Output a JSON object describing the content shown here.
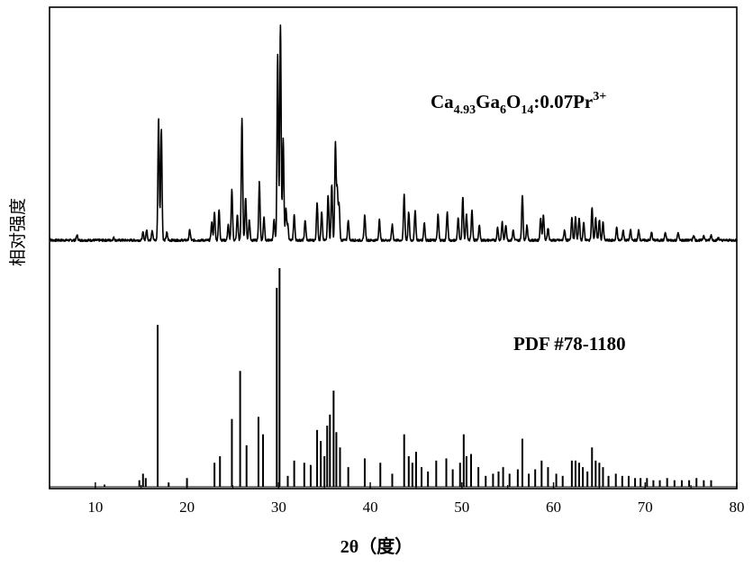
{
  "chart_data": {
    "type": "line",
    "xlabel": "2θ（度）",
    "ylabel": "相对强度",
    "xlim": [
      5,
      80
    ],
    "x_ticks": [
      10,
      20,
      30,
      40,
      50,
      60,
      70,
      80
    ],
    "y_ticks_shown": false,
    "grid": false,
    "series": [
      {
        "name": "Ca4.93Ga6O14:0.07Pr3+",
        "label": {
          "base": "Ca",
          "sub1": "4.93",
          "mid1": "Ga",
          "sub2": "6",
          "mid2": "O",
          "sub3": "14",
          "mid3": ":0.07Pr",
          "sup": "3+"
        },
        "kind": "continuous_pattern",
        "x": [
          5,
          8,
          12,
          15.2,
          15.6,
          16.2,
          16.9,
          17.2,
          17.8,
          20.3,
          22.7,
          23,
          23.5,
          24.5,
          24.9,
          25.5,
          26,
          26.4,
          26.8,
          27.9,
          28.4,
          29.5,
          29.9,
          30.2,
          30.5,
          30.8,
          31,
          31.7,
          32.9,
          34.2,
          34.7,
          35.4,
          35.8,
          36.2,
          36.4,
          36.6,
          37.6,
          39.4,
          41,
          42.4,
          43.7,
          44.2,
          44.9,
          45.9,
          47.4,
          48.4,
          49.6,
          50.1,
          50.5,
          51.1,
          51.9,
          53.9,
          54.4,
          54.8,
          55.6,
          56.6,
          57.1,
          58.6,
          58.9,
          59.4,
          61.2,
          62,
          62.4,
          62.8,
          63.3,
          64.2,
          64.6,
          65,
          65.4,
          66.9,
          67.6,
          68.4,
          69.3,
          70.7,
          72.2,
          73.6,
          75.3,
          76.4,
          77.2,
          78
        ],
        "y": [
          1,
          2,
          1,
          3,
          4,
          4,
          48,
          44,
          3,
          4,
          7,
          11,
          12,
          6,
          20,
          10,
          48,
          17,
          8,
          23,
          9,
          8,
          73,
          85,
          40,
          12,
          6,
          10,
          8,
          15,
          11,
          18,
          22,
          38,
          20,
          14,
          8,
          10,
          8,
          6,
          18,
          11,
          12,
          7,
          10,
          11,
          9,
          17,
          10,
          12,
          6,
          5,
          7,
          6,
          4,
          18,
          6,
          9,
          10,
          5,
          4,
          9,
          9,
          9,
          7,
          13,
          9,
          8,
          7,
          5,
          4,
          4,
          4,
          3,
          3,
          3,
          2,
          2,
          2,
          1
        ],
        "baseline_noise": true
      },
      {
        "name": "PDF #78-1180",
        "kind": "reference_sticks",
        "x": [
          11,
          14.8,
          15.2,
          15.5,
          16.8,
          18,
          20,
          23,
          23.6,
          24.9,
          25.8,
          26.5,
          27.8,
          28.3,
          29.8,
          30.1,
          31,
          31.7,
          32.8,
          33.5,
          34.2,
          34.6,
          35,
          35.3,
          35.6,
          36,
          36.3,
          36.7,
          37.6,
          39.4,
          41.1,
          42.4,
          43.7,
          44.2,
          44.6,
          45,
          45.6,
          46.3,
          47.2,
          48.3,
          49,
          49.8,
          50.2,
          50.5,
          51,
          51.8,
          52.6,
          53.4,
          54,
          54.5,
          55.2,
          56.1,
          56.6,
          57.3,
          58,
          58.7,
          59.4,
          60.3,
          61,
          62,
          62.4,
          62.8,
          63.2,
          63.7,
          64.2,
          64.6,
          65,
          65.4,
          66,
          66.8,
          67.5,
          68.2,
          68.9,
          69.5,
          70.2,
          70.9,
          71.6,
          72.4,
          73.2,
          74,
          74.8,
          75.6,
          76.4,
          77.2
        ],
        "y": [
          1,
          3,
          6,
          4,
          74,
          2,
          4,
          11,
          14,
          31,
          53,
          19,
          32,
          24,
          91,
          100,
          5,
          12,
          11,
          10,
          26,
          21,
          14,
          28,
          33,
          44,
          25,
          18,
          9,
          13,
          11,
          6,
          24,
          14,
          11,
          16,
          9,
          7,
          12,
          13,
          8,
          11,
          24,
          14,
          15,
          9,
          5,
          6,
          7,
          9,
          6,
          8,
          22,
          6,
          8,
          12,
          9,
          6,
          5,
          12,
          12,
          11,
          9,
          7,
          18,
          12,
          11,
          9,
          5,
          6,
          5,
          5,
          4,
          4,
          4,
          3,
          3,
          4,
          3,
          3,
          3,
          4,
          3,
          3
        ]
      }
    ]
  }
}
